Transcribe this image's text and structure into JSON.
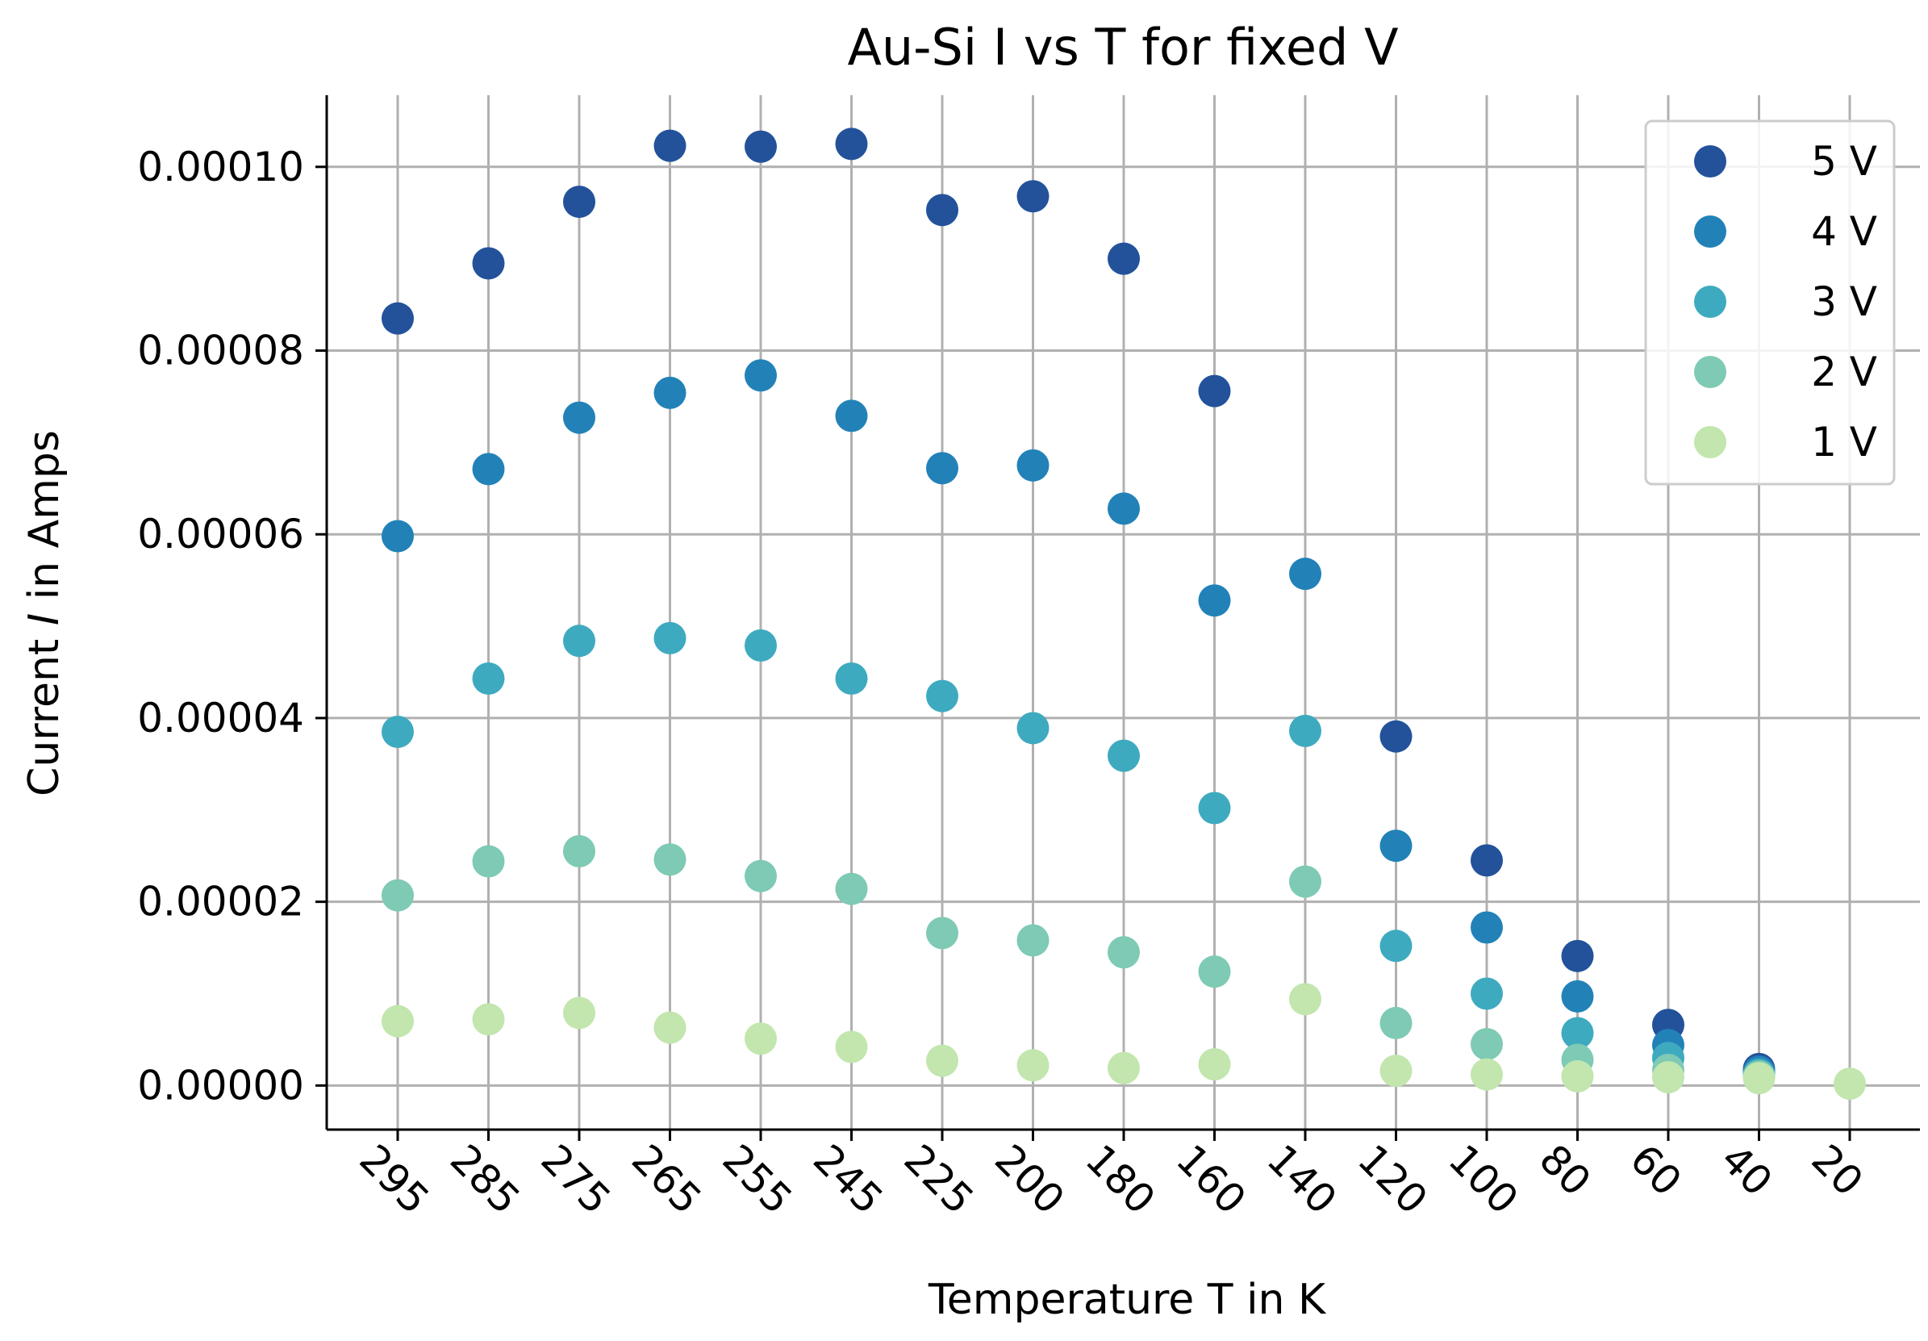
{
  "chart_data": {
    "type": "scatter",
    "title": "Au-Si I vs T for fixed V",
    "xlabel": "Temperature T in K",
    "ylabel": "Current I in Amps",
    "categories": [
      "295",
      "285",
      "275",
      "265",
      "255",
      "245",
      "225",
      "200",
      "180",
      "160",
      "140",
      "120",
      "100",
      "80",
      "60",
      "40",
      "20"
    ],
    "yticks": [
      "0.00000",
      "0.00002",
      "0.00004",
      "0.00006",
      "0.00008",
      "0.00010"
    ],
    "ylim": [
      -4.8e-06,
      0.0001078
    ],
    "grid": true,
    "legend_position": "top-right",
    "series": [
      {
        "name": "5 V",
        "color": "#23529b",
        "values": [
          8.35e-05,
          8.95e-05,
          9.62e-05,
          0.0001023,
          0.0001022,
          0.0001025,
          9.53e-05,
          9.68e-05,
          9e-05,
          7.56e-05,
          null,
          3.8e-05,
          2.45e-05,
          1.41e-05,
          6.6e-06,
          1.8e-06,
          null
        ]
      },
      {
        "name": "4 V",
        "color": "#2282b8",
        "values": [
          5.98e-05,
          6.71e-05,
          7.27e-05,
          7.54e-05,
          7.73e-05,
          7.29e-05,
          6.72e-05,
          6.75e-05,
          6.28e-05,
          5.28e-05,
          5.57e-05,
          2.61e-05,
          1.72e-05,
          9.7e-06,
          4.4e-06,
          1.5e-06,
          null
        ]
      },
      {
        "name": "3 V",
        "color": "#3eaabf",
        "values": [
          3.85e-05,
          4.43e-05,
          4.84e-05,
          4.87e-05,
          4.79e-05,
          4.43e-05,
          4.24e-05,
          3.89e-05,
          3.59e-05,
          3.02e-05,
          3.86e-05,
          1.52e-05,
          1e-05,
          5.7e-06,
          3e-06,
          1.2e-06,
          null
        ]
      },
      {
        "name": "2 V",
        "color": "#7ecab4",
        "values": [
          2.07e-05,
          2.44e-05,
          2.55e-05,
          2.46e-05,
          2.28e-05,
          2.14e-05,
          1.66e-05,
          1.58e-05,
          1.45e-05,
          1.24e-05,
          2.22e-05,
          6.8e-06,
          4.5e-06,
          2.8e-06,
          1.7e-06,
          1e-06,
          null
        ]
      },
      {
        "name": "1 V",
        "color": "#c2e6ae",
        "values": [
          7e-06,
          7.2e-06,
          7.9e-06,
          6.3e-06,
          5.1e-06,
          4.2e-06,
          2.7e-06,
          2.2e-06,
          1.9e-06,
          2.3e-06,
          9.4e-06,
          1.6e-06,
          1.2e-06,
          1e-06,
          9e-07,
          8e-07,
          2e-07
        ]
      }
    ]
  }
}
